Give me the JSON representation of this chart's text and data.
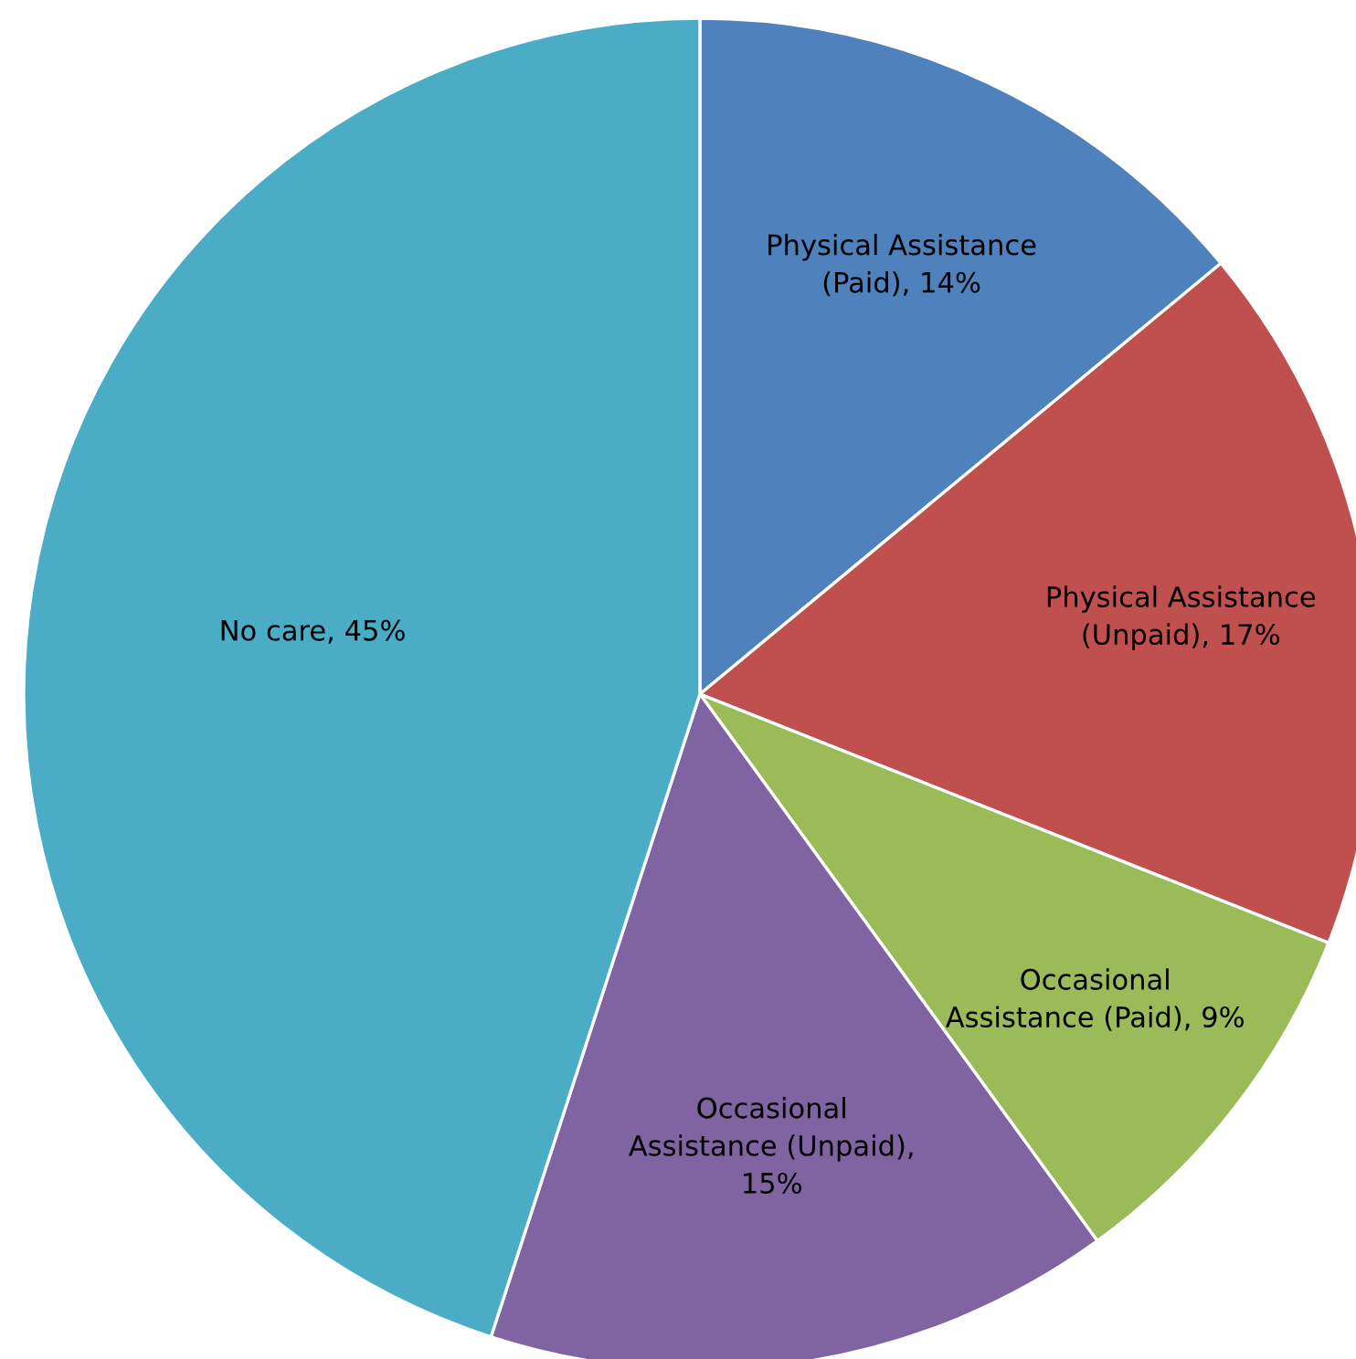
{
  "chart_data": {
    "type": "pie",
    "categories": [
      "Physical Assistance\n(Paid), 14%",
      "Physical Assistance\n(Unpaid), 17%",
      "Occasional\nAssistance (Paid), 9%",
      "Occasional\nAssistance (Unpaid),\n15%",
      "No care, 45%"
    ],
    "values": [
      14,
      17,
      9,
      15,
      45
    ],
    "colors": [
      "#4f81bd",
      "#c0504d",
      "#9bbb59",
      "#8064a2",
      "#4bacc6"
    ]
  }
}
